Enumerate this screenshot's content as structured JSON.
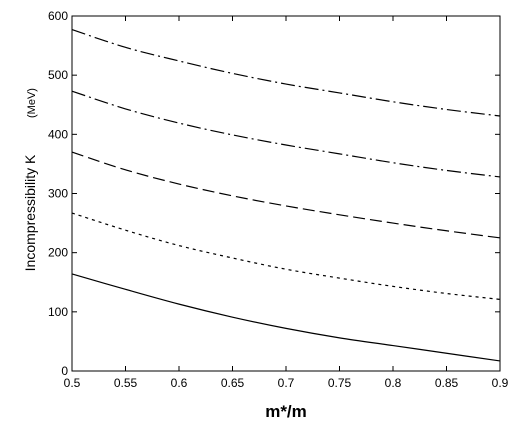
{
  "chart_data": {
    "type": "line",
    "title": "",
    "xlabel": "m*/m",
    "ylabel": "Incompressibility K",
    "ylabel_unit": "(MeV)",
    "xlim": [
      0.5,
      0.9
    ],
    "ylim": [
      0,
      600
    ],
    "x_ticks": [
      "0.5",
      "0.55",
      "0.6",
      "0.65",
      "0.7",
      "0.75",
      "0.8",
      "0.85",
      "0.9"
    ],
    "y_ticks": [
      "0",
      "100",
      "200",
      "300",
      "400",
      "500",
      "600"
    ],
    "grid": false,
    "legend": "none",
    "x": [
      0.5,
      0.55,
      0.6,
      0.65,
      0.7,
      0.75,
      0.8,
      0.85,
      0.9
    ],
    "series": [
      {
        "style": "solid",
        "values": [
          164,
          138,
          113,
          91,
          72,
          56,
          43,
          30,
          17
        ]
      },
      {
        "style": "dotted",
        "values": [
          267,
          238,
          212,
          191,
          172,
          157,
          143,
          131,
          121
        ]
      },
      {
        "style": "dashed",
        "values": [
          370,
          340,
          316,
          296,
          279,
          264,
          250,
          237,
          225
        ]
      },
      {
        "style": "dash-dot",
        "values": [
          473,
          443,
          419,
          399,
          382,
          367,
          352,
          339,
          328
        ]
      },
      {
        "style": "dash-dot",
        "values": [
          577,
          547,
          524,
          503,
          485,
          470,
          455,
          442,
          431
        ]
      }
    ]
  }
}
